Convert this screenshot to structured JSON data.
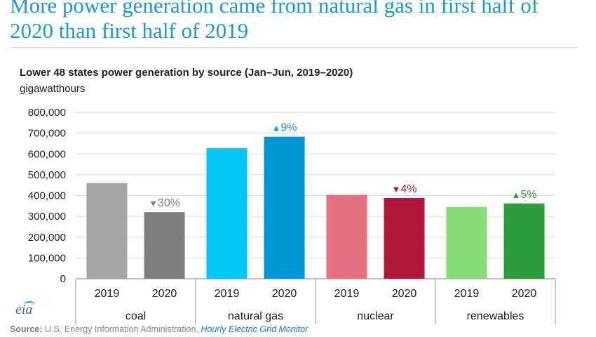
{
  "headline": "More power generation came from natural gas in first half of 2020 than first half of 2019",
  "logo_text": "eia",
  "source": {
    "label": "Source:",
    "text": "U.S. Energy Information Administration,",
    "link": "Hourly Electric Grid Monitor"
  },
  "chart_data": {
    "type": "bar",
    "title": "Lower 48 states power generation by source (Jan–Jun, 2019–2020)",
    "ylabel": "gigawatthours",
    "ylim": [
      0,
      800000
    ],
    "yticks": [
      "0",
      "100,000",
      "200,000",
      "300,000",
      "400,000",
      "500,000",
      "600,000",
      "700,000",
      "800,000"
    ],
    "ytick_values": [
      0,
      100000,
      200000,
      300000,
      400000,
      500000,
      600000,
      700000,
      800000
    ],
    "grid": true,
    "groups": [
      {
        "category": "coal",
        "bars": [
          {
            "year": "2019",
            "value": 460000,
            "color": "#a6a6a6"
          },
          {
            "year": "2020",
            "value": 320000,
            "color": "#7f7f7f"
          }
        ],
        "change": {
          "symbol": "▼",
          "text": "30%",
          "color": "#7f7f7f"
        }
      },
      {
        "category": "natural gas",
        "bars": [
          {
            "year": "2019",
            "value": 627000,
            "color": "#00c5f7"
          },
          {
            "year": "2020",
            "value": 683000,
            "color": "#0096d6"
          }
        ],
        "change": {
          "symbol": "▲",
          "text": "9%",
          "color": "#1a9ad6"
        }
      },
      {
        "category": "nuclear",
        "bars": [
          {
            "year": "2019",
            "value": 403000,
            "color": "#e57182"
          },
          {
            "year": "2020",
            "value": 388000,
            "color": "#b0173b"
          }
        ],
        "change": {
          "symbol": "▼",
          "text": "4%",
          "color": "#a8203e"
        }
      },
      {
        "category": "renewables",
        "bars": [
          {
            "year": "2019",
            "value": 345000,
            "color": "#88dc78"
          },
          {
            "year": "2020",
            "value": 362000,
            "color": "#2e9e3c"
          }
        ],
        "change": {
          "symbol": "▲",
          "text": "5%",
          "color": "#3a9e3f"
        }
      }
    ]
  }
}
